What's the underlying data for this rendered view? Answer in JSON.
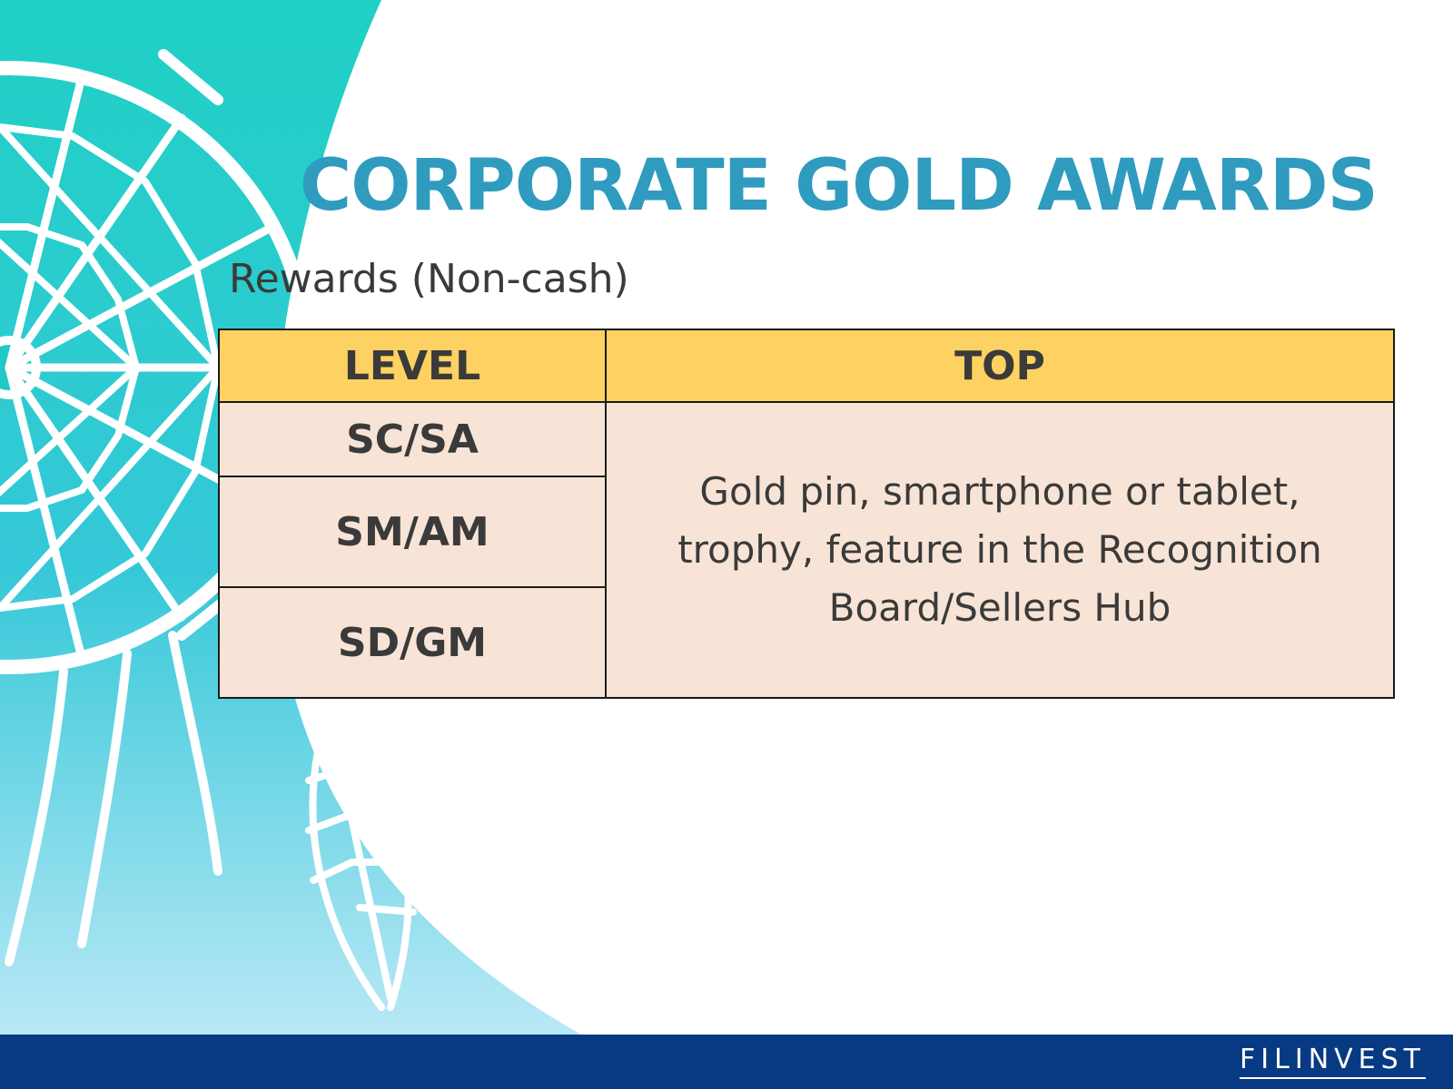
{
  "slide": {
    "title": "CORPORATE GOLD AWARDS",
    "subtitle": "Rewards (Non-cash)"
  },
  "table": {
    "headers": [
      "LEVEL",
      "TOP"
    ],
    "levels": [
      "SC/SA",
      "SM/AM",
      "SD/GM"
    ],
    "top_reward": "Gold pin, smartphone or tablet, trophy, feature in the Recognition Board/Sellers Hub"
  },
  "footer": {
    "logo_text": "FILINVEST"
  },
  "colors": {
    "title": "#2f9bbf",
    "header_fill": "#fdd262",
    "cell_fill": "#f8e4d6",
    "footer_bar": "#073a82",
    "teal_art": "#1fc9c4"
  },
  "icons": {
    "background": "dreamcatcher-icon"
  }
}
